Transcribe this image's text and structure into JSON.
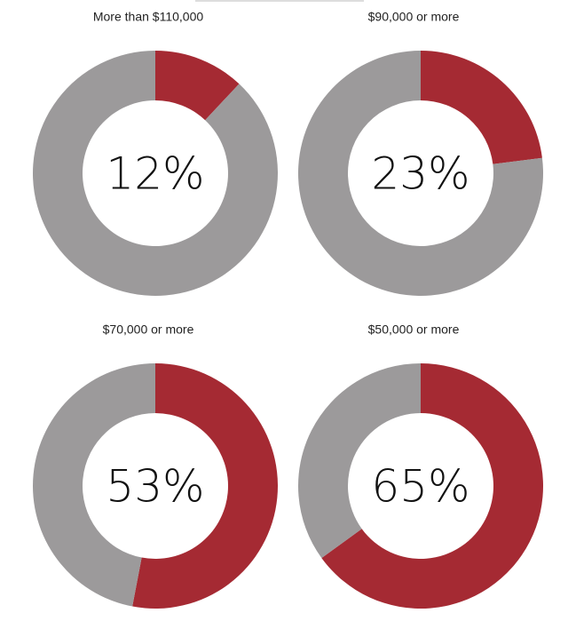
{
  "chart_data": [
    {
      "type": "donut",
      "title": "More than $110,000",
      "values": [
        12,
        88
      ],
      "value_labels": [
        "12%",
        null
      ],
      "colors": [
        "#a52a33",
        "#9c9a9b"
      ]
    },
    {
      "type": "donut",
      "title": "$90,000 or more",
      "values": [
        23,
        77
      ],
      "value_labels": [
        "23%",
        null
      ],
      "colors": [
        "#a52a33",
        "#9c9a9b"
      ]
    },
    {
      "type": "donut",
      "title": "$70,000 or more",
      "values": [
        53,
        47
      ],
      "value_labels": [
        "53%",
        null
      ],
      "colors": [
        "#a52a33",
        "#9c9a9b"
      ]
    },
    {
      "type": "donut",
      "title": "$50,000 or more",
      "values": [
        65,
        35
      ],
      "value_labels": [
        "65%",
        null
      ],
      "colors": [
        "#a52a33",
        "#9c9a9b"
      ]
    }
  ]
}
